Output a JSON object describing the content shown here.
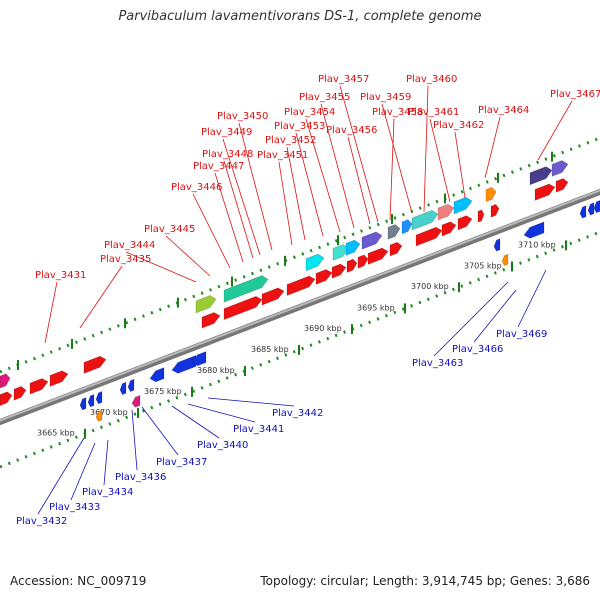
{
  "title": "Parvibaculum lavamentivorans DS-1, complete genome",
  "footer": {
    "accession": "Accession: NC_009719",
    "info": "Topology: circular; Length: 3,914,745 bp; Genes: 3,686"
  },
  "colors": {
    "forward_gene": "#ee1111",
    "reverse_gene": "#1133dd",
    "top_label": "#dd1111",
    "bottom_label": "#1111bb",
    "backbone": "#888888",
    "ruler": "#228b22"
  },
  "ruler_ticks": [
    "3665 kbp",
    "3670 kbp",
    "3675 kbp",
    "3680 kbp",
    "3685 kbp",
    "3690 kbp",
    "3695 kbp",
    "3700 kbp",
    "3705 kbp",
    "3710 kbp"
  ],
  "top_labels": [
    "Plav_3431",
    "Plav_3435",
    "Plav_3444",
    "Plav_3445",
    "Plav_3446",
    "Plav_3447",
    "Plav_3448",
    "Plav_3449",
    "Plav_3450",
    "Plav_3451",
    "Plav_3452",
    "Plav_3453",
    "Plav_3454",
    "Plav_3455",
    "Plav_3456",
    "Plav_3457",
    "Plav_3458",
    "Plav_3459",
    "Plav_3460",
    "Plav_3461",
    "Plav_3462",
    "Plav_3464",
    "Plav_3467"
  ],
  "bottom_labels": [
    "Plav_3432",
    "Plav_3433",
    "Plav_3434",
    "Plav_3436",
    "Plav_3437",
    "Plav_3440",
    "Plav_3441",
    "Plav_3442",
    "Plav_3463",
    "Plav_3466",
    "Plav_3469"
  ]
}
